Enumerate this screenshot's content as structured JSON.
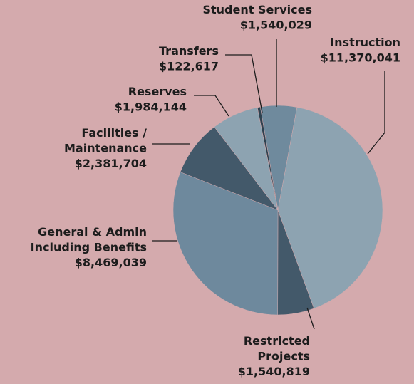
{
  "chart_data": {
    "type": "pie",
    "categories": [
      "Student Services",
      "Instruction",
      "Restricted\nProjects",
      "General & Admin\nIncluding Benefits",
      "Facilities /\nMaintenance",
      "Reserves",
      "Transfers"
    ],
    "values": [
      1540029,
      11370041,
      1540819,
      8469039,
      2381704,
      1984144,
      122617
    ],
    "value_labels": [
      "$1,540,029",
      "$11,370,041",
      "$1,540,819",
      "$8,469,039",
      "$2,381,704",
      "$1,984,144",
      "$122,617"
    ],
    "colors": [
      "#6f8a9d",
      "#8da3b1",
      "#43596a",
      "#6e899d",
      "#43596a",
      "#8da3b1",
      "#2f4250"
    ]
  }
}
